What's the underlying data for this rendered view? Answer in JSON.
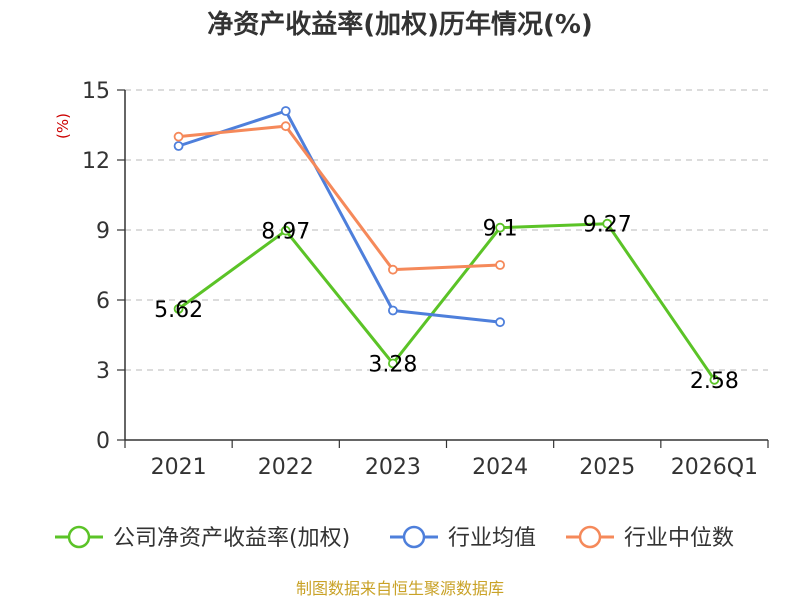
{
  "chart_data": {
    "type": "line",
    "title": "净资产收益率(加权)历年情况(%)",
    "ylabel": "(%)",
    "xlabel": "",
    "categories": [
      "2021",
      "2022",
      "2023",
      "2024",
      "2025",
      "2026Q1"
    ],
    "ylim": [
      0,
      15
    ],
    "yticks": [
      0,
      3,
      6,
      9,
      12,
      15
    ],
    "grid": true,
    "legend_position": "bottom",
    "series": [
      {
        "name": "公司净资产收益率(加权)",
        "color": "#5bc327",
        "values": [
          5.62,
          8.97,
          3.28,
          9.1,
          9.27,
          2.58
        ],
        "labels": [
          "5.62",
          "8.97",
          "3.28",
          "9.1",
          "9.27",
          "2.58"
        ]
      },
      {
        "name": "行业均值",
        "color": "#4e7fdb",
        "values": [
          12.6,
          14.1,
          5.55,
          5.05,
          null,
          null
        ]
      },
      {
        "name": "行业中位数",
        "color": "#f5895a",
        "values": [
          13.0,
          13.45,
          7.3,
          7.5,
          null,
          null
        ]
      }
    ],
    "source": "制图数据来自恒生聚源数据库"
  }
}
